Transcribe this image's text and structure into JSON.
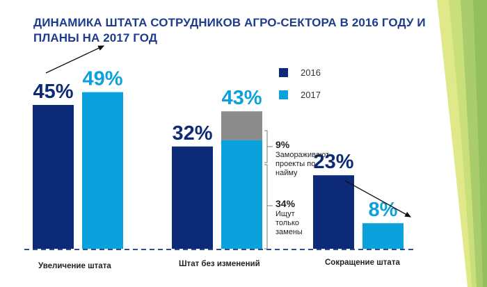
{
  "title_line1": "ДИНАМИКА ШТАТА СОТРУДНИКОВ АГРО-СЕКТОРА В 2016 ГОДУ И",
  "title_line2": "ПЛАНЫ НА 2017 ГОД",
  "legend": [
    {
      "label": "2016",
      "color": "#0d2a78"
    },
    {
      "label": "2017",
      "color": "#0aa1dd"
    }
  ],
  "annotations": {
    "freeze": {
      "value": "9%",
      "lines": [
        "Замораживают",
        "проекты по",
        "найму"
      ]
    },
    "replace": {
      "value": "34%",
      "lines": [
        "Ищут",
        "только",
        "замены"
      ]
    }
  },
  "chart_data": {
    "type": "bar",
    "title": "ДИНАМИКА ШТАТА СОТРУДНИКОВ АГРО-СЕКТОРА В 2016 ГОДУ И ПЛАНЫ НА 2017 ГОД",
    "categories": [
      "Увеличение штата",
      "Штат без изменений",
      "Сокращение штата"
    ],
    "series": [
      {
        "name": "2016",
        "color": "#0d2a78",
        "values": [
          45,
          32,
          23
        ],
        "labels": [
          "45%",
          "32%",
          "23%"
        ]
      },
      {
        "name": "2017",
        "color": "#0aa1dd",
        "values": [
          49,
          43,
          8
        ],
        "labels": [
          "49%",
          "43%",
          "8%"
        ],
        "stack_breakdown": {
          "category": "Штат без изменений",
          "parts": [
            {
              "name": "Ищут только замены",
              "value": 34,
              "color": "#0aa1dd"
            },
            {
              "name": "Замораживают проекты по найму",
              "value": 9,
              "color": "#8c8c8c"
            }
          ]
        }
      }
    ],
    "trend_arrows": [
      {
        "category": "Увеличение штата",
        "direction": "up"
      },
      {
        "category": "Сокращение штата",
        "direction": "down"
      }
    ],
    "xlabel": "",
    "ylabel": "",
    "ylim": [
      0,
      50
    ],
    "grid": false,
    "legend": "top-right"
  }
}
